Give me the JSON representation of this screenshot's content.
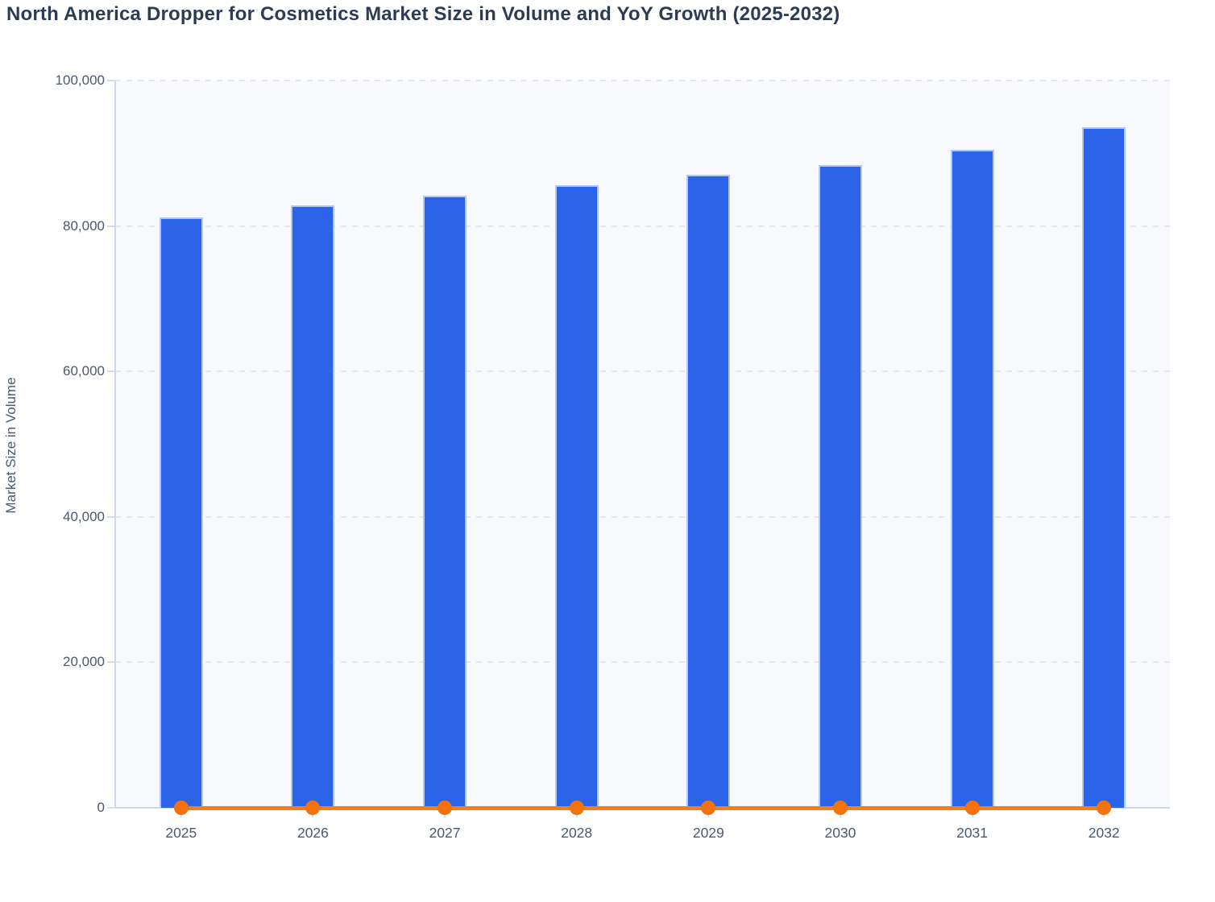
{
  "chart_data": {
    "type": "bar",
    "title": "North America Dropper for Cosmetics Market Size in Volume and YoY Growth (2025-2032)",
    "ylabel": "Market Size in Volume",
    "xlabel": "",
    "categories": [
      "2025",
      "2026",
      "2027",
      "2028",
      "2029",
      "2030",
      "2031",
      "2032"
    ],
    "series": [
      {
        "name": "Market Size in Volume",
        "type": "bar",
        "color": "#2b64e8",
        "values": [
          81200,
          82800,
          84200,
          85600,
          87000,
          88400,
          90500,
          93600
        ]
      },
      {
        "name": "YoY Growth",
        "type": "line",
        "color": "#f57d1a",
        "marker_color": "#f3720e",
        "values": [
          0,
          0,
          0,
          0,
          0,
          0,
          0,
          0
        ]
      }
    ],
    "ylim": [
      0,
      100000
    ],
    "yticks": [
      {
        "value": 0,
        "label": "0"
      },
      {
        "value": 20000,
        "label": "20,000"
      },
      {
        "value": 40000,
        "label": "40,000"
      },
      {
        "value": 60000,
        "label": "60,000"
      },
      {
        "value": 80000,
        "label": "80,000"
      },
      {
        "value": 100000,
        "label": "100,000"
      }
    ],
    "grid": "dashed-horizontal",
    "legend": "none",
    "layout_hints": {
      "line_renders_on_zero_baseline": true,
      "plot_background": "#f8f9fc",
      "gridline_color": "#e4e7ef",
      "axis_line_color": "#cfd6e8",
      "tick_color": "#d6dbe8",
      "title_color": "#2e3b55",
      "axis_text_color": "#4c596e"
    }
  }
}
